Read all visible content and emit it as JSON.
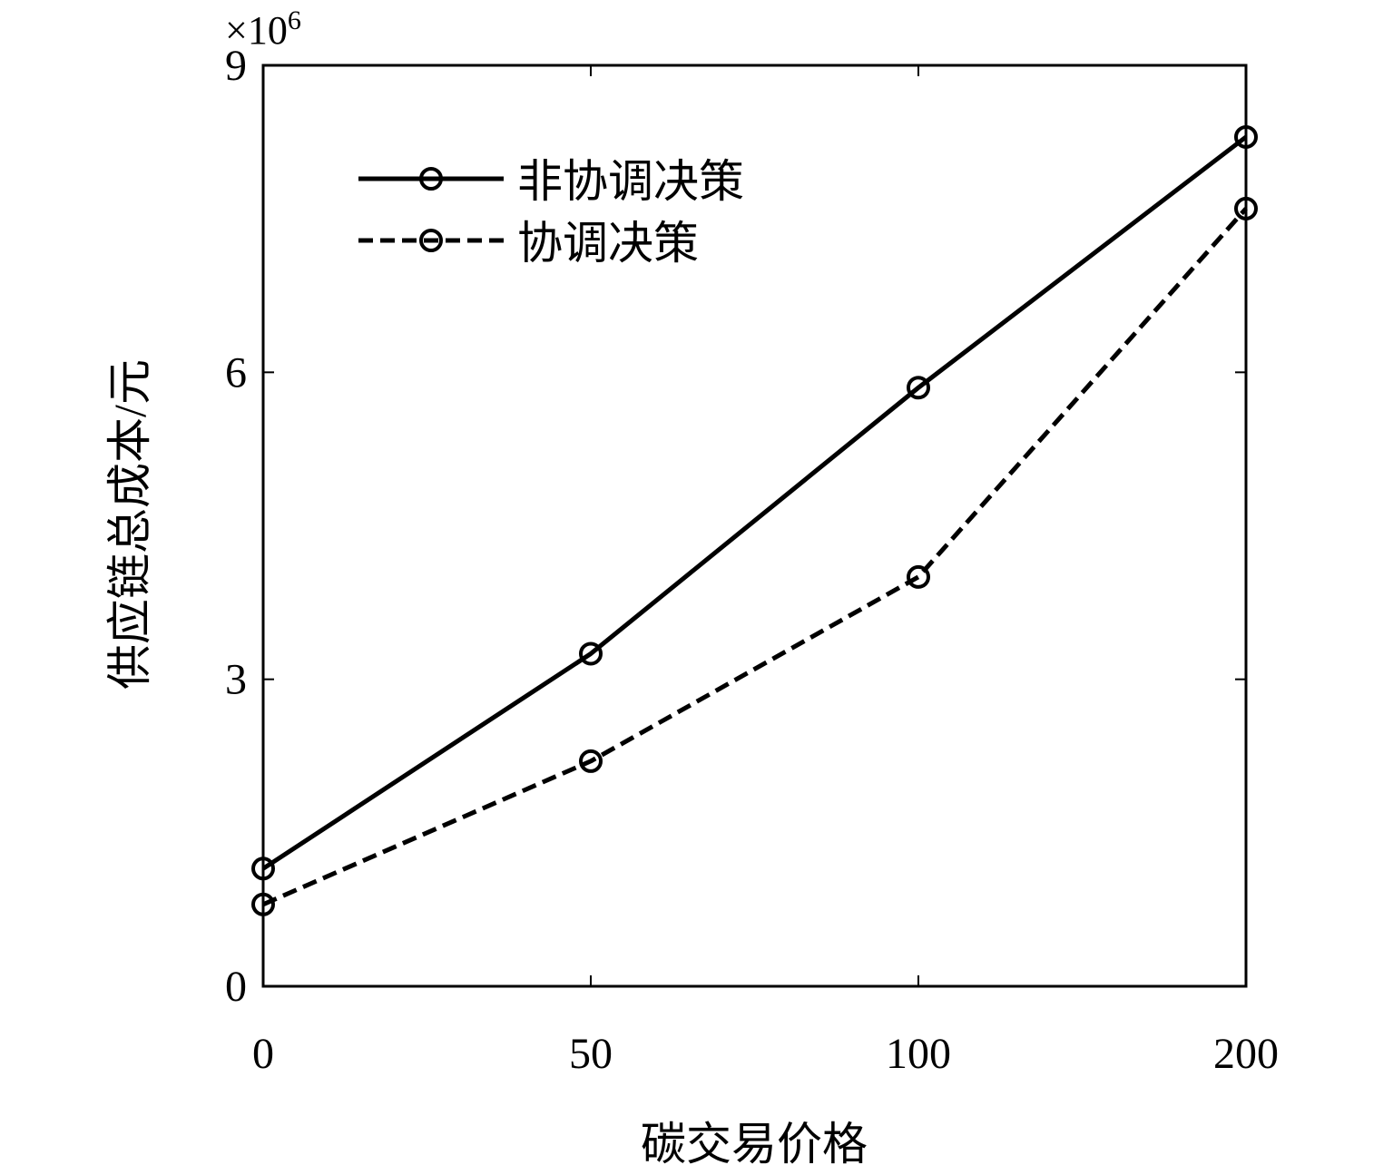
{
  "chart_data": {
    "type": "line",
    "title": "",
    "xlabel": "碳交易价格",
    "ylabel": "供应链总成本/元",
    "categories": [
      "0",
      "50",
      "100",
      "200"
    ],
    "x_tick_labels": [
      "0",
      "50",
      "100",
      "200"
    ],
    "y_tick_labels": [
      "0",
      "3",
      "6",
      "9"
    ],
    "y_exponent": {
      "base": "×10",
      "power": "6"
    },
    "ylim": [
      0,
      9
    ],
    "y_unit_multiplier": 1000000,
    "grid": false,
    "legend_position": "top-left",
    "series": [
      {
        "name": "非协调决策",
        "values": [
          1.15,
          3.25,
          5.85,
          8.3
        ],
        "line_style": "solid",
        "marker": "circle",
        "color": "#000000"
      },
      {
        "name": "协调决策",
        "values": [
          0.8,
          2.2,
          4.0,
          7.6
        ],
        "line_style": "dashed",
        "marker": "circle",
        "color": "#000000"
      }
    ]
  }
}
